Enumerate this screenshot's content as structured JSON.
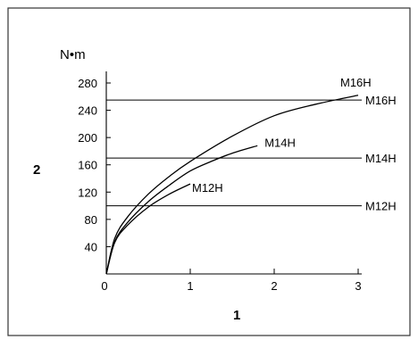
{
  "chart_data": {
    "type": "line",
    "ylabel": "N•m",
    "axis_marker_y": "2",
    "axis_marker_x": "1",
    "x_ticks": [
      0,
      1,
      2,
      3
    ],
    "y_ticks": [
      40,
      80,
      120,
      160,
      200,
      240,
      280
    ],
    "xlim": [
      0,
      3.2
    ],
    "ylim": [
      0,
      280
    ],
    "series": [
      {
        "name": "M16H",
        "kind": "curve",
        "x": [
          0.0,
          0.1,
          0.25,
          0.5,
          0.75,
          1.0,
          1.5,
          2.0,
          2.5,
          3.0
        ],
        "y": [
          0,
          52,
          83,
          117,
          143,
          165,
          202,
          232,
          249,
          262
        ]
      },
      {
        "name": "M14H",
        "kind": "curve",
        "x": [
          0.0,
          0.1,
          0.25,
          0.5,
          0.75,
          1.0,
          1.25,
          1.5,
          1.8
        ],
        "y": [
          0,
          47,
          75,
          106,
          130,
          151,
          165,
          177,
          188
        ]
      },
      {
        "name": "M12H",
        "kind": "curve",
        "x": [
          0.0,
          0.1,
          0.25,
          0.5,
          0.75,
          1.0
        ],
        "y": [
          0,
          46,
          71,
          98,
          117,
          132
        ]
      },
      {
        "name": "M16H",
        "kind": "limit",
        "y": 255
      },
      {
        "name": "M14H",
        "kind": "limit",
        "y": 170
      },
      {
        "name": "M12H",
        "kind": "limit",
        "y": 100
      }
    ]
  }
}
